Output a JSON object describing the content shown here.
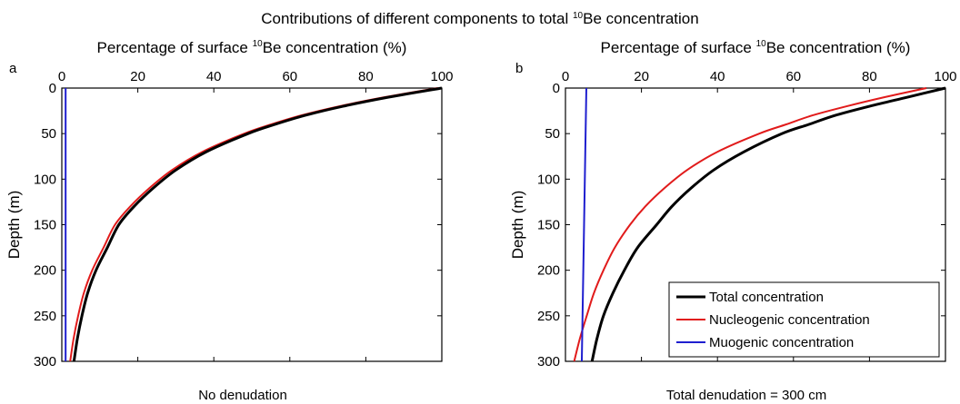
{
  "figure_title": {
    "before": "Contributions of different components to total ",
    "sup": "10",
    "after": "Be concentration"
  },
  "colors": {
    "total": "#000000",
    "nucleogenic": "#e11b1b",
    "muogenic": "#1f1fcf"
  },
  "legend": {
    "placement": "bottom-right of panel b",
    "entries": [
      "Total concentration",
      "Nucleogenic concentration",
      "Muogenic concentration"
    ]
  },
  "chart_data": [
    {
      "type": "line",
      "panel": "a",
      "caption": "No denudation",
      "xlabel": {
        "before": "Percentage of surface ",
        "sup": "10",
        "after": "Be concentration (%)"
      },
      "ylabel": "Depth (m)",
      "x_axis_position": "top",
      "y_inverted": true,
      "xlim": [
        0,
        100
      ],
      "ylim": [
        0,
        300
      ],
      "xticks": [
        "0",
        "20",
        "40",
        "60",
        "80",
        "100"
      ],
      "yticks": [
        "0",
        "50",
        "100",
        "150",
        "200",
        "250",
        "300"
      ],
      "grid": false,
      "series": [
        {
          "name": "Total concentration",
          "key": "total",
          "points": [
            [
              100,
              0
            ],
            [
              86,
              10
            ],
            [
              74,
              20
            ],
            [
              64,
              30
            ],
            [
              56,
              40
            ],
            [
              49,
              50
            ],
            [
              38,
              70
            ],
            [
              30,
              90
            ],
            [
              24,
              110
            ],
            [
              19,
              130
            ],
            [
              15,
              150
            ],
            [
              12,
              175
            ],
            [
              9,
              200
            ],
            [
              6.8,
              225
            ],
            [
              5.3,
              250
            ],
            [
              4.1,
              275
            ],
            [
              3.2,
              300
            ]
          ]
        },
        {
          "name": "Nucleogenic concentration",
          "key": "nucleogenic",
          "points": [
            [
              99,
              0
            ],
            [
              85,
              10
            ],
            [
              73,
              20
            ],
            [
              63,
              30
            ],
            [
              55,
              40
            ],
            [
              48,
              50
            ],
            [
              37,
              70
            ],
            [
              29,
              90
            ],
            [
              23,
              110
            ],
            [
              18,
              130
            ],
            [
              14,
              150
            ],
            [
              11,
              175
            ],
            [
              8,
              200
            ],
            [
              5.8,
              225
            ],
            [
              4.3,
              250
            ],
            [
              3.1,
              275
            ],
            [
              2.2,
              300
            ]
          ]
        },
        {
          "name": "Muogenic concentration",
          "key": "muogenic",
          "points": [
            [
              1.0,
              0
            ],
            [
              1.0,
              300
            ]
          ]
        }
      ]
    },
    {
      "type": "line",
      "panel": "b",
      "caption": "Total denudation = 300 cm",
      "xlabel": {
        "before": "Percentage of surface ",
        "sup": "10",
        "after": "Be concentration (%)"
      },
      "ylabel": "Depth (m)",
      "x_axis_position": "top",
      "y_inverted": true,
      "xlim": [
        0,
        100
      ],
      "ylim": [
        0,
        300
      ],
      "xticks": [
        "0",
        "20",
        "40",
        "60",
        "80",
        "100"
      ],
      "yticks": [
        "0",
        "50",
        "100",
        "150",
        "200",
        "250",
        "300"
      ],
      "grid": false,
      "series": [
        {
          "name": "Total concentration",
          "key": "total",
          "points": [
            [
              100,
              0
            ],
            [
              90,
              10
            ],
            [
              80,
              20
            ],
            [
              71,
              30
            ],
            [
              64,
              40
            ],
            [
              57,
              50
            ],
            [
              47,
              70
            ],
            [
              39,
              90
            ],
            [
              33,
              110
            ],
            [
              28,
              130
            ],
            [
              24,
              150
            ],
            [
              19,
              175
            ],
            [
              15.5,
              200
            ],
            [
              12.5,
              225
            ],
            [
              10,
              250
            ],
            [
              8.3,
              275
            ],
            [
              7,
              300
            ]
          ]
        },
        {
          "name": "Nucleogenic concentration",
          "key": "nucleogenic",
          "points": [
            [
              95,
              0
            ],
            [
              84,
              10
            ],
            [
              74,
              20
            ],
            [
              65,
              30
            ],
            [
              58,
              40
            ],
            [
              51,
              50
            ],
            [
              40,
              70
            ],
            [
              32,
              90
            ],
            [
              26,
              110
            ],
            [
              21,
              130
            ],
            [
              17,
              150
            ],
            [
              13,
              175
            ],
            [
              10,
              200
            ],
            [
              7.5,
              225
            ],
            [
              5.6,
              250
            ],
            [
              3.8,
              275
            ],
            [
              2.3,
              300
            ]
          ]
        },
        {
          "name": "Muogenic concentration",
          "key": "muogenic",
          "points": [
            [
              5.5,
              0
            ],
            [
              4.3,
              300
            ]
          ]
        }
      ]
    }
  ]
}
